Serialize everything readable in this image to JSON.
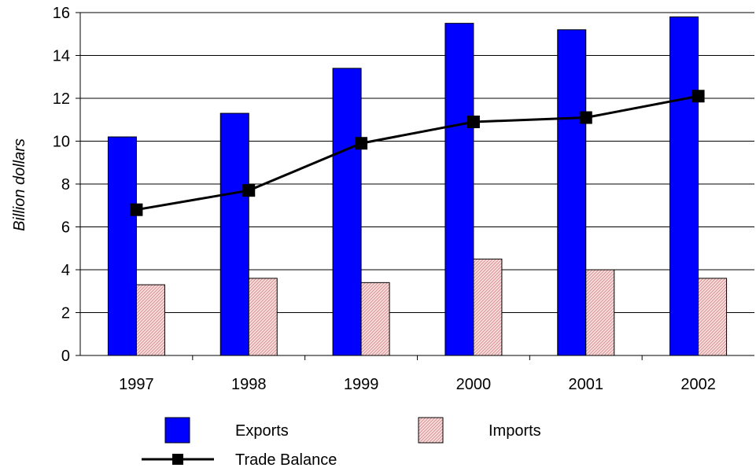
{
  "chart_data": {
    "type": "bar",
    "categories": [
      "1997",
      "1998",
      "1999",
      "2000",
      "2001",
      "2002"
    ],
    "series": [
      {
        "name": "Exports",
        "kind": "bar",
        "color": "#0000ff",
        "values": [
          10.2,
          11.3,
          13.4,
          15.5,
          15.2,
          15.8
        ]
      },
      {
        "name": "Imports",
        "kind": "bar",
        "color": "#f2c4c4",
        "pattern": "hatched",
        "values": [
          3.3,
          3.6,
          3.4,
          4.5,
          4.0,
          3.6
        ]
      },
      {
        "name": "Trade Balance",
        "kind": "line",
        "color": "#000000",
        "marker": "square",
        "values": [
          6.8,
          7.7,
          9.9,
          10.9,
          11.1,
          12.1
        ]
      }
    ],
    "ylabel": "Billion dollars",
    "xlabel": "",
    "ylim": [
      0,
      16
    ],
    "yticks": [
      0,
      2,
      4,
      6,
      8,
      10,
      12,
      14,
      16
    ],
    "grid": "horizontal",
    "legend_position": "bottom"
  },
  "legend": {
    "exports_label": "Exports",
    "imports_label": "Imports",
    "trade_balance_label": "Trade Balance"
  }
}
